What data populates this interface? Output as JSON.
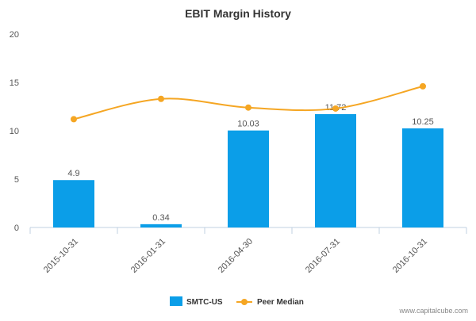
{
  "chart_data": {
    "type": "bar",
    "title": "EBIT Margin History",
    "categories": [
      "2015-10-31",
      "2016-01-31",
      "2016-04-30",
      "2016-07-31",
      "2016-10-31"
    ],
    "series": [
      {
        "name": "SMTC-US",
        "kind": "bar",
        "values": [
          4.9,
          0.34,
          10.03,
          11.72,
          10.25
        ],
        "labels": [
          "4.9",
          "0.34",
          "10.03",
          "11.72",
          "10.25"
        ],
        "color": "#0b9ee8"
      },
      {
        "name": "Peer Median",
        "kind": "line",
        "smooth": true,
        "values": [
          11.2,
          13.3,
          12.4,
          12.3,
          14.6
        ],
        "color": "#f5a623"
      }
    ],
    "y_ticks": [
      "0",
      "5",
      "10",
      "15",
      "20"
    ],
    "ylim": [
      0,
      20
    ],
    "grid": false,
    "legend_position": "bottom-center"
  },
  "watermark": "www.capitalcube.com"
}
